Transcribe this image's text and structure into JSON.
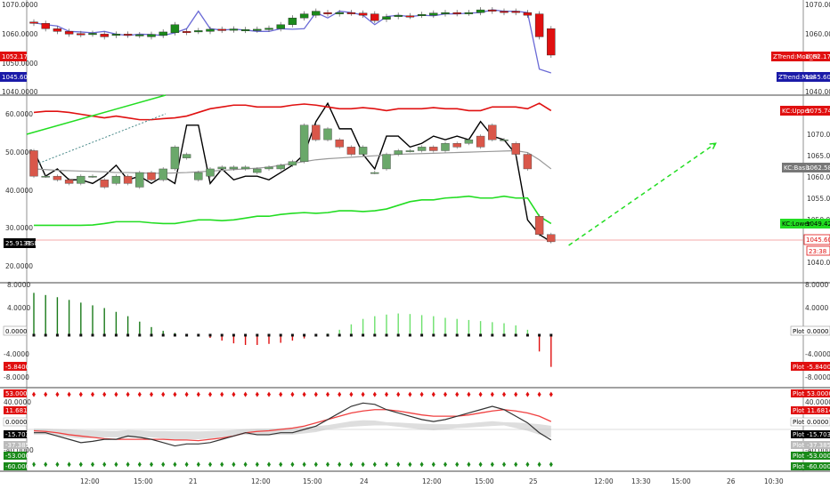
{
  "colors": {
    "up_candle": "#1b8a1b",
    "down_candle": "#e01010",
    "rsi_up": "#6aa86a",
    "rsi_down": "#d9574a",
    "kc_upper": "#e01010",
    "kc_lower": "#22dd22",
    "kc_basis": "#999999",
    "ztrend": "#6b6bd6",
    "hist_pos_dark": "#1a7a1a",
    "hist_pos_light": "#6ce06c",
    "hist_neg": "#e01010",
    "osc_black": "#333333",
    "osc_red": "#f04040",
    "band_fill": "#d6d6d6"
  },
  "time_axis": {
    "labels": [
      "12:00",
      "15:00",
      "21",
      "12:00",
      "15:00",
      "24",
      "12:00",
      "15:00",
      "25",
      "12:00",
      "13:30",
      "15:00",
      "26",
      "10:30"
    ]
  },
  "pane1": {
    "price_ticks": [
      "1070.0000",
      "1060.0000",
      "1050.0000",
      "1040.0000"
    ],
    "tags": {
      "left_red": "1052.1740",
      "left_blue": "1045.6000",
      "right_red_name": "ZTrend:Mod_Hi",
      "right_red_value": "1052.1740",
      "right_blue_name": "ZTrend:Mod",
      "right_blue_value": "1045.6000"
    }
  },
  "pane2": {
    "rsi_ticks": [
      "60.0000",
      "50.0000",
      "40.0000",
      "30.0000",
      "20.0000"
    ],
    "price_ticks": [
      "1070.00",
      "1065.00",
      "1060.00",
      "1055.00",
      "1050.00",
      "1040.00"
    ],
    "tags": {
      "rsi_value": "25.9133",
      "rsi_name": "RSI",
      "kc_upper_name": "KC:Upper",
      "kc_upper_value": "1075.74",
      "kc_basis_name": "KC:Basis",
      "kc_basis_value": "1062.58",
      "kc_lower_name": "KC:Lower",
      "kc_lower_value": "1049.42",
      "last_price": "1045.60",
      "countdown": "23:38"
    }
  },
  "pane3": {
    "ticks": [
      "8.0000",
      "4.0000",
      "0.0000",
      "-4.0000",
      "-8.0000"
    ],
    "tags": {
      "left_zero": "0.0000",
      "left_neg": "-5.8400",
      "right_zero_name": "Plot",
      "right_zero_value": "0.0000",
      "right_neg_name": "Plot",
      "right_neg_value": "-5.8400"
    }
  },
  "pane4": {
    "ticks": [
      "40.0000",
      "-40.0000"
    ],
    "tags_left": [
      "53.0000",
      "11.6814",
      "0.0000",
      "-15.7039",
      "-37.3853",
      "-53.0000",
      "-60.0000"
    ],
    "tags_right_name": "Plot",
    "tags_right_values": [
      "53.0000",
      "11.6814",
      "0.0000",
      "-15.7039",
      "-37.3853",
      "-53.0000",
      "-60.0000"
    ]
  },
  "chart_data": [
    {
      "type": "candlestick",
      "pane": "price",
      "ylim": [
        1038,
        1072
      ],
      "candles": [
        {
          "o": 1064.5,
          "c": 1064.0
        },
        {
          "o": 1064.0,
          "c": 1062.0
        },
        {
          "o": 1062.0,
          "c": 1061.0
        },
        {
          "o": 1061.0,
          "c": 1060.0
        },
        {
          "o": 1060.2,
          "c": 1059.8
        },
        {
          "o": 1060.0,
          "c": 1060.3
        },
        {
          "o": 1060.0,
          "c": 1059.0
        },
        {
          "o": 1059.5,
          "c": 1060.0
        },
        {
          "o": 1060.0,
          "c": 1059.6
        },
        {
          "o": 1059.5,
          "c": 1059.8
        },
        {
          "o": 1059.0,
          "c": 1059.9
        },
        {
          "o": 1059.5,
          "c": 1060.8
        },
        {
          "o": 1060.5,
          "c": 1063.5
        },
        {
          "o": 1061.0,
          "c": 1060.6
        },
        {
          "o": 1061.0,
          "c": 1061.3
        },
        {
          "o": 1061.0,
          "c": 1061.8
        },
        {
          "o": 1061.8,
          "c": 1061.4
        },
        {
          "o": 1061.5,
          "c": 1061.9
        },
        {
          "o": 1061.4,
          "c": 1061.7
        },
        {
          "o": 1061.5,
          "c": 1061.8
        },
        {
          "o": 1061.8,
          "c": 1062.2
        },
        {
          "o": 1062.0,
          "c": 1063.5
        },
        {
          "o": 1063.5,
          "c": 1066.0
        },
        {
          "o": 1066.0,
          "c": 1067.5
        },
        {
          "o": 1067.0,
          "c": 1068.5
        },
        {
          "o": 1068.0,
          "c": 1067.5
        },
        {
          "o": 1067.5,
          "c": 1068.0
        },
        {
          "o": 1068.0,
          "c": 1067.8
        },
        {
          "o": 1067.8,
          "c": 1067.0
        },
        {
          "o": 1067.5,
          "c": 1065.0
        },
        {
          "o": 1065.5,
          "c": 1066.5
        },
        {
          "o": 1066.5,
          "c": 1067.0
        },
        {
          "o": 1066.8,
          "c": 1066.6
        },
        {
          "o": 1067.0,
          "c": 1067.3
        },
        {
          "o": 1067.0,
          "c": 1067.8
        },
        {
          "o": 1067.5,
          "c": 1068.0
        },
        {
          "o": 1068.0,
          "c": 1067.6
        },
        {
          "o": 1067.8,
          "c": 1068.0
        },
        {
          "o": 1068.0,
          "c": 1069.0
        },
        {
          "o": 1069.0,
          "c": 1068.5
        },
        {
          "o": 1068.5,
          "c": 1068.0
        },
        {
          "o": 1068.5,
          "c": 1068.0
        },
        {
          "o": 1068.0,
          "c": 1067.0
        },
        {
          "o": 1067.5,
          "c": 1059.0
        },
        {
          "o": 1062.0,
          "c": 1052.2
        }
      ],
      "ztrend_line": [
        1064.2,
        1063.5,
        1063.0,
        1061.0,
        1060.8,
        1060.5,
        1061.0,
        1060.0,
        1059.5,
        1060.0,
        1059.8,
        1059.5,
        1060.5,
        1062.0,
        1068.5,
        1062.0,
        1061.5,
        1061.8,
        1061.5,
        1061.0,
        1061.0,
        1062.0,
        1061.8,
        1062.0,
        1068.0,
        1066.0,
        1068.5,
        1068.0,
        1067.0,
        1063.5,
        1066.5,
        1067.0,
        1066.5,
        1067.0,
        1066.8,
        1067.5,
        1067.5,
        1067.8,
        1068.0,
        1069.0,
        1068.5,
        1068.5,
        1068.0,
        1047.0,
        1045.6
      ]
    },
    {
      "type": "line",
      "pane": "rsi_keltner",
      "ylim_rsi": [
        15,
        66
      ],
      "series": [
        {
          "name": "RSI",
          "values": [
            51,
            44,
            46,
            43,
            43,
            42,
            44,
            47,
            43,
            44,
            42,
            44,
            42,
            58,
            58,
            42,
            46,
            43,
            44,
            44,
            43,
            45,
            47,
            50,
            59,
            64,
            57,
            57,
            50,
            46,
            55,
            55,
            52,
            53,
            55,
            54,
            55,
            54,
            59,
            55,
            54,
            50,
            32,
            28,
            26
          ]
        },
        {
          "name": "KC:Upper",
          "values": [
            61.5,
            61.8,
            61.8,
            61.5,
            61.0,
            60.5,
            60.0,
            60.5,
            60.0,
            59.5,
            59.5,
            59.8,
            60.0,
            60.5,
            61.5,
            62.5,
            63.0,
            63.5,
            63.5,
            63.0,
            63.0,
            63.0,
            63.5,
            63.8,
            63.5,
            63.0,
            62.5,
            62.5,
            62.8,
            62.5,
            62.0,
            62.5,
            62.5,
            62.5,
            62.8,
            62.5,
            62.5,
            62.0,
            62.0,
            63.0,
            63.0,
            63.0,
            62.5,
            64.0,
            62.0
          ]
        },
        {
          "name": "KC:Basis",
          "values": [
            46.0,
            45.8,
            45.6,
            45.5,
            45.4,
            45.3,
            45.2,
            45.0,
            45.0,
            44.9,
            44.8,
            44.8,
            44.9,
            45.0,
            45.2,
            45.4,
            45.6,
            45.8,
            46.0,
            46.2,
            46.5,
            47.0,
            47.5,
            48.0,
            48.5,
            48.8,
            49.0,
            49.2,
            49.4,
            49.6,
            49.8,
            50.0,
            50.1,
            50.2,
            50.3,
            50.4,
            50.5,
            50.6,
            50.7,
            50.8,
            50.9,
            51.0,
            50.5,
            48.5,
            46.0
          ]
        },
        {
          "name": "KC:Lower",
          "values": [
            30.5,
            30.5,
            30.5,
            30.5,
            30.5,
            30.6,
            31.0,
            31.5,
            31.5,
            31.5,
            31.2,
            31.0,
            31.0,
            31.5,
            32.0,
            32.0,
            31.8,
            32.0,
            32.5,
            33.0,
            33.0,
            33.5,
            33.8,
            34.0,
            33.8,
            34.0,
            34.5,
            34.5,
            34.3,
            34.5,
            35.0,
            36.0,
            37.0,
            37.5,
            37.5,
            38.0,
            38.2,
            38.5,
            38.0,
            38.0,
            38.5,
            38.0,
            38.0,
            33.0,
            31.0
          ]
        }
      ],
      "rsi_candles": [
        {
          "o": 51,
          "c": 44
        },
        {
          "o": 44,
          "c": 44
        },
        {
          "o": 44,
          "c": 43
        },
        {
          "o": 43,
          "c": 42
        },
        {
          "o": 42,
          "c": 44
        },
        {
          "o": 44,
          "c": 44
        },
        {
          "o": 43,
          "c": 41
        },
        {
          "o": 42,
          "c": 44
        },
        {
          "o": 44,
          "c": 42
        },
        {
          "o": 41,
          "c": 45
        },
        {
          "o": 45,
          "c": 43
        },
        {
          "o": 43,
          "c": 46
        },
        {
          "o": 46,
          "c": 52
        },
        {
          "o": 49,
          "c": 50
        },
        {
          "o": 43,
          "c": 45
        },
        {
          "o": 44,
          "c": 46
        },
        {
          "o": 46,
          "c": 46.5
        },
        {
          "o": 46,
          "c": 46.5
        },
        {
          "o": 46,
          "c": 46.5
        },
        {
          "o": 45,
          "c": 46
        },
        {
          "o": 46,
          "c": 46.5
        },
        {
          "o": 46,
          "c": 47
        },
        {
          "o": 47,
          "c": 48
        },
        {
          "o": 48,
          "c": 58
        },
        {
          "o": 58,
          "c": 54
        },
        {
          "o": 54,
          "c": 57
        },
        {
          "o": 54,
          "c": 52
        },
        {
          "o": 52,
          "c": 50
        },
        {
          "o": 50,
          "c": 52
        },
        {
          "o": 45,
          "c": 45
        },
        {
          "o": 46,
          "c": 50
        },
        {
          "o": 50,
          "c": 51
        },
        {
          "o": 51,
          "c": 51
        },
        {
          "o": 51,
          "c": 52
        },
        {
          "o": 52,
          "c": 51
        },
        {
          "o": 51,
          "c": 53
        },
        {
          "o": 53,
          "c": 52
        },
        {
          "o": 53,
          "c": 54
        },
        {
          "o": 55,
          "c": 52
        },
        {
          "o": 58,
          "c": 54
        },
        {
          "o": 54,
          "c": 54
        },
        {
          "o": 53,
          "c": 50
        },
        {
          "o": 50,
          "c": 46
        },
        {
          "o": 33,
          "c": 28
        },
        {
          "o": 28,
          "c": 26
        }
      ],
      "projection": {
        "from_x": 45.5,
        "from_y": 25,
        "to_x": 58,
        "to_y": 53
      }
    },
    {
      "type": "bar",
      "pane": "histogram",
      "ylim": [
        -9.5,
        9.5
      ],
      "values": [
        7.8,
        7.4,
        7.0,
        6.5,
        6.0,
        5.5,
        5.0,
        4.3,
        3.5,
        2.5,
        1.5,
        0.8,
        0.4,
        0.2,
        0.1,
        -0.5,
        -1.0,
        -1.5,
        -1.8,
        -1.8,
        -1.6,
        -1.4,
        -1.0,
        -0.6,
        -0.2,
        0.3,
        1.0,
        2.0,
        3.0,
        3.5,
        3.8,
        4.0,
        3.9,
        3.7,
        3.5,
        3.2,
        3.0,
        2.8,
        2.6,
        2.4,
        2.2,
        1.8,
        1.0,
        -3.0,
        -5.84
      ]
    },
    {
      "type": "line",
      "pane": "oscillator",
      "ylim": [
        -62,
        62
      ],
      "hlines": [
        53,
        -53
      ],
      "series": [
        {
          "name": "black",
          "values": [
            -5,
            -5,
            -10,
            -15,
            -20,
            -18,
            -15,
            -15,
            -10,
            -12,
            -15,
            -20,
            -25,
            -22,
            -22,
            -20,
            -15,
            -10,
            -5,
            -8,
            -8,
            -5,
            -5,
            0,
            5,
            15,
            25,
            35,
            40,
            38,
            30,
            25,
            20,
            15,
            12,
            15,
            20,
            25,
            30,
            35,
            30,
            20,
            10,
            -5,
            -16
          ]
        },
        {
          "name": "red",
          "values": [
            -2,
            -3,
            -5,
            -8,
            -10,
            -12,
            -14,
            -15,
            -15,
            -15,
            -15,
            -15,
            -16,
            -16,
            -17,
            -15,
            -13,
            -10,
            -5,
            -3,
            -2,
            0,
            2,
            5,
            10,
            15,
            20,
            25,
            28,
            30,
            30,
            28,
            25,
            22,
            20,
            20,
            20,
            22,
            25,
            28,
            30,
            28,
            25,
            20,
            12
          ]
        }
      ]
    }
  ]
}
